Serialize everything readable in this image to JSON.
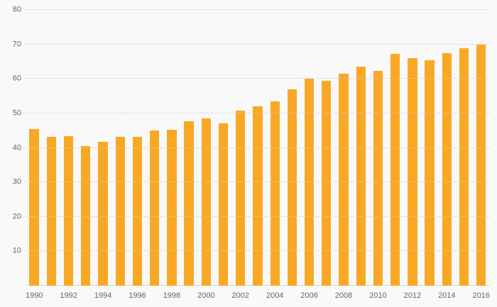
{
  "chart_data": {
    "type": "bar",
    "title": "",
    "xlabel": "",
    "ylabel": "",
    "categories": [
      1990,
      1991,
      1992,
      1993,
      1994,
      1995,
      1996,
      1997,
      1998,
      1999,
      2000,
      2001,
      2002,
      2003,
      2004,
      2005,
      2006,
      2007,
      2008,
      2009,
      2010,
      2011,
      2012,
      2013,
      2014,
      2015,
      2016
    ],
    "values": [
      45.5,
      43.2,
      43.3,
      40.5,
      41.8,
      43.2,
      43.2,
      45.0,
      45.3,
      47.8,
      48.5,
      47.0,
      50.8,
      52.0,
      53.5,
      57.0,
      60.0,
      59.5,
      61.5,
      63.5,
      62.3,
      67.3,
      66.0,
      65.3,
      67.5,
      69.0,
      70.0
    ],
    "x_tick_labels": [
      "1990",
      "1992",
      "1994",
      "1996",
      "1998",
      "2000",
      "2002",
      "2004",
      "2006",
      "2008",
      "2010",
      "2012",
      "2014",
      "2016"
    ],
    "ylim": [
      0,
      80
    ],
    "yticks": [
      10,
      20,
      30,
      40,
      50,
      60,
      70,
      80
    ],
    "grid": "dotted horizontal",
    "legend": "none",
    "bar_color": "#F9A825",
    "background_color": "#f9f9f9",
    "axis_text_color": "#666666",
    "gridline_color": "#cfcfcf"
  }
}
